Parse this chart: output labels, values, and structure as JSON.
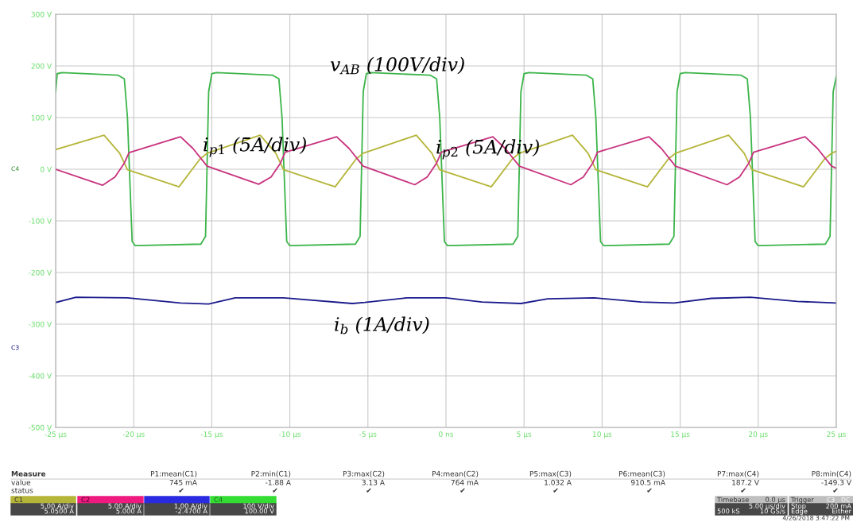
{
  "chart_data": {
    "type": "line",
    "grid": true,
    "xlim": [
      -25,
      25
    ],
    "ylim": [
      -500,
      300
    ],
    "xticks": [
      {
        "value": -25,
        "label": "-25 µs"
      },
      {
        "value": -20,
        "label": "-20 µs"
      },
      {
        "value": -15,
        "label": "-15 µs"
      },
      {
        "value": -10,
        "label": "-10 µs"
      },
      {
        "value": -5,
        "label": "-5 µs"
      },
      {
        "value": 0,
        "label": "0 ns"
      },
      {
        "value": 5,
        "label": "5 µs"
      },
      {
        "value": 10,
        "label": "10 µs"
      },
      {
        "value": 15,
        "label": "15 µs"
      },
      {
        "value": 20,
        "label": "20 µs"
      },
      {
        "value": 25,
        "label": "25 µs"
      }
    ],
    "yticks": [
      {
        "value": 300,
        "label": "300 V"
      },
      {
        "value": 200,
        "label": "200 V"
      },
      {
        "value": 100,
        "label": "100 V"
      },
      {
        "value": 0,
        "label": "0 V"
      },
      {
        "value": -100,
        "label": "-100 V"
      },
      {
        "value": -200,
        "label": "-200 V"
      },
      {
        "value": -300,
        "label": "-300 V"
      },
      {
        "value": -400,
        "label": "-400 V"
      },
      {
        "value": -500,
        "label": "-500 V"
      }
    ],
    "series": [
      {
        "color": "#3cb54a",
        "x": [
          -25,
          -24.9,
          -24.6,
          -21.0,
          -20.6,
          -20.4,
          -20.1,
          -19.9,
          -15.7,
          -15.4,
          -15.2,
          -15.0,
          -14.7,
          -11.1,
          -10.7,
          -10.5,
          -10.2,
          -10.0,
          -5.8,
          -5.5,
          -5.3,
          -5.1,
          -4.8,
          -1.0,
          -0.6,
          -0.4,
          -0.1,
          0.1,
          4.3,
          4.6,
          4.8,
          5.0,
          5.3,
          9.0,
          9.4,
          9.6,
          9.9,
          10.1,
          14.3,
          14.6,
          14.8,
          15.0,
          15.3,
          18.9,
          19.3,
          19.5,
          19.8,
          20.0,
          24.3,
          24.6,
          24.8,
          25
        ],
        "values": [
          150,
          185,
          187,
          182,
          175,
          100,
          -140,
          -148,
          -145,
          -130,
          150,
          185,
          187,
          182,
          175,
          100,
          -140,
          -148,
          -145,
          -130,
          150,
          185,
          187,
          182,
          175,
          100,
          -140,
          -148,
          -145,
          -130,
          150,
          185,
          187,
          182,
          175,
          100,
          -140,
          -148,
          -145,
          -130,
          150,
          185,
          187,
          182,
          175,
          100,
          -140,
          -148,
          -145,
          -130,
          150,
          180
        ]
      },
      {
        "color": "#b5b53a",
        "x": [
          -25,
          -21.9,
          -20.9,
          -20.4,
          -17.1,
          -15.75,
          -15.3,
          -11.9,
          -10.9,
          -10.4,
          -7.1,
          -5.75,
          -5.3,
          -1.9,
          -0.9,
          -0.4,
          2.9,
          4.25,
          4.7,
          8.1,
          9.1,
          9.6,
          12.9,
          14.25,
          14.7,
          18.1,
          19.1,
          19.6,
          22.9,
          24.25,
          24.7,
          25
        ],
        "values": [
          38,
          66,
          31,
          -1,
          -34,
          20,
          31,
          66,
          31,
          -1,
          -34,
          20,
          31,
          66,
          31,
          -1,
          -34,
          20,
          31,
          66,
          31,
          -1,
          -34,
          20,
          31,
          66,
          31,
          -1,
          -34,
          20,
          31,
          35
        ]
      },
      {
        "color": "#c8327f",
        "x": [
          -25,
          -22.0,
          -21.2,
          -20.6,
          -20.3,
          -17.0,
          -16.2,
          -15.3,
          -12.0,
          -11.2,
          -10.6,
          -10.3,
          -7.0,
          -6.2,
          -5.3,
          -2.0,
          -1.2,
          -0.6,
          -0.3,
          3.0,
          3.8,
          4.7,
          8.0,
          8.8,
          9.4,
          9.7,
          13.0,
          13.8,
          14.7,
          18.0,
          18.8,
          19.4,
          19.7,
          23.0,
          23.8,
          24.7,
          25
        ],
        "values": [
          0,
          -31,
          -15,
          12,
          32,
          63,
          40,
          6,
          -29,
          -15,
          12,
          33,
          63,
          40,
          6,
          -30,
          -15,
          12,
          33,
          63,
          40,
          6,
          -30,
          -15,
          12,
          33,
          63,
          40,
          6,
          -30,
          -15,
          12,
          33,
          63,
          40,
          6,
          2
        ]
      },
      {
        "color": "#1a1a8c",
        "x": [
          -25,
          -23.7,
          -20.4,
          -17.0,
          -15.2,
          -13.5,
          -10.4,
          -6.0,
          -5.2,
          -2.5,
          0.0,
          2.3,
          4.8,
          6.5,
          9.5,
          12.5,
          14.6,
          17.0,
          19.5,
          22.5,
          25
        ],
        "values": [
          -258,
          -248,
          -249,
          -259,
          -261,
          -249,
          -249,
          -260,
          -258,
          -249,
          -249,
          -257,
          -260,
          -251,
          -249,
          -257,
          -259,
          -250,
          -248,
          -256,
          -259
        ]
      }
    ],
    "annotations": [
      "v$_{AB}$ (100V/div)",
      "i$_{p1}$ (5A/div)",
      "i$_{p2}$ (5A/div)",
      "i$_{b}$ (1A/div)",
      "C4",
      "C3",
      "Measure",
      "value",
      "status",
      "P1:mean(C1)",
      "P2:min(C1)",
      "P3:max(C2)",
      "P4:mean(C2)",
      "P5:max(C3)",
      "P6:mean(C3)",
      "P7:max(C4)",
      "P8:min(C4)",
      "745 mA",
      "-1.88 A",
      "3.13 A",
      "764 mA",
      "1.032 A",
      "910.5 mA",
      "187.2 V",
      "-149.3 V",
      "✔",
      "✔",
      "✔",
      "✔",
      "✔",
      "✔",
      "✔",
      "✔",
      "C1",
      "5.00 A/div",
      "5.0500 A",
      "C2",
      "5.00 A/div",
      "5.000 A",
      "1.00 A/div",
      "-2.4700 A",
      "C4",
      "100 V/div",
      "100.00 V",
      "Timebase",
      "0.0 µs",
      "5.00 µs/div",
      "500 kS",
      "10 GS/s",
      "Trigger",
      "C3",
      "DC",
      "Stop",
      "200 mA",
      "Edge",
      "Either",
      "4/26/2018 3:47:22 PM"
    ]
  }
}
